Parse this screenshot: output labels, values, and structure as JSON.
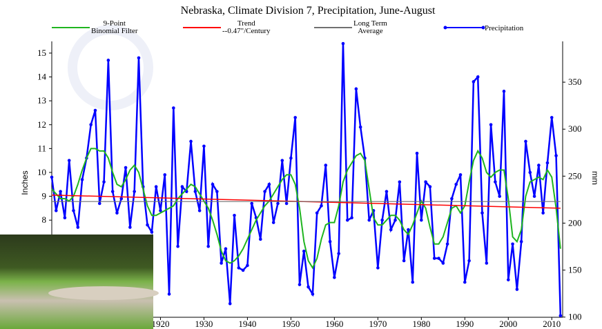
{
  "chart_data": {
    "type": "line",
    "title": "Nebraska, Climate Division 7, Precipitation, June-August",
    "y_label": "Inches",
    "y2_label": "mm",
    "xlim": [
      1895,
      2012.5
    ],
    "xticks": [
      1920,
      1930,
      1940,
      1950,
      1960,
      1970,
      1980,
      1990,
      2000,
      2010
    ],
    "ylim": [
      3.93,
      15.49
    ],
    "yticks": [
      8,
      9,
      10,
      11,
      12,
      13,
      14,
      15
    ],
    "y2lim": [
      99.8,
      393.4
    ],
    "y2ticks": [
      100,
      150,
      200,
      250,
      300,
      350
    ],
    "x": [
      1895,
      1896,
      1897,
      1898,
      1899,
      1900,
      1901,
      1902,
      1903,
      1904,
      1905,
      1906,
      1907,
      1908,
      1909,
      1910,
      1911,
      1912,
      1913,
      1914,
      1915,
      1916,
      1917,
      1918,
      1919,
      1920,
      1921,
      1922,
      1923,
      1924,
      1925,
      1926,
      1927,
      1928,
      1929,
      1930,
      1931,
      1932,
      1933,
      1934,
      1935,
      1936,
      1937,
      1938,
      1939,
      1940,
      1941,
      1942,
      1943,
      1944,
      1945,
      1946,
      1947,
      1948,
      1949,
      1950,
      1951,
      1952,
      1953,
      1954,
      1955,
      1956,
      1957,
      1958,
      1959,
      1960,
      1961,
      1962,
      1963,
      1964,
      1965,
      1966,
      1967,
      1968,
      1969,
      1970,
      1971,
      1972,
      1973,
      1974,
      1975,
      1976,
      1977,
      1978,
      1979,
      1980,
      1981,
      1982,
      1983,
      1984,
      1985,
      1986,
      1987,
      1988,
      1989,
      1990,
      1991,
      1992,
      1993,
      1994,
      1995,
      1996,
      1997,
      1998,
      1999,
      2000,
      2001,
      2002,
      2003,
      2004,
      2005,
      2006,
      2007,
      2008,
      2009,
      2010,
      2011,
      2012
    ],
    "series": [
      {
        "name": "9-Point\nBinomial Filter",
        "color": "#1fb51f",
        "values": [
          9.3,
          9.1,
          8.9,
          8.9,
          8.8,
          9.0,
          9.5,
          10.1,
          10.6,
          11.0,
          11.0,
          10.9,
          10.9,
          10.6,
          10.0,
          9.5,
          9.4,
          9.7,
          10.1,
          10.3,
          10.0,
          9.3,
          8.6,
          8.2,
          8.2,
          8.3,
          8.4,
          8.5,
          8.6,
          8.9,
          9.1,
          9.3,
          9.5,
          9.4,
          9.1,
          8.8,
          8.5,
          8.0,
          7.4,
          6.7,
          6.3,
          6.2,
          6.3,
          6.5,
          6.8,
          7.2,
          7.6,
          8.0,
          8.3,
          8.6,
          8.8,
          9.1,
          9.4,
          9.7,
          9.9,
          9.9,
          9.5,
          8.5,
          7.1,
          6.3,
          6.0,
          6.4,
          7.2,
          7.8,
          7.9,
          7.9,
          8.6,
          9.6,
          10.1,
          10.4,
          10.7,
          10.8,
          10.5,
          9.3,
          8.1,
          7.8,
          7.8,
          8.0,
          8.2,
          8.2,
          8.0,
          7.6,
          7.4,
          7.8,
          8.3,
          8.8,
          8.5,
          7.7,
          7.0,
          7.0,
          7.3,
          7.9,
          8.5,
          8.6,
          8.3,
          8.6,
          9.6,
          10.5,
          10.9,
          10.6,
          10.0,
          9.8,
          10.0,
          10.1,
          10.1,
          8.9,
          7.3,
          7.1,
          7.6,
          9.0,
          9.6,
          9.7,
          9.8,
          9.7,
          10.1,
          9.8,
          8.5,
          6.8
        ]
      },
      {
        "name": "Trend\n--0.47\"/Century",
        "color": "#ff0000",
        "x": [
          1895,
          2012
        ],
        "values": [
          9.05,
          8.5
        ]
      },
      {
        "name": "Long Term\nAverage",
        "color": "#707070",
        "x": [
          1895,
          2012
        ],
        "values": [
          8.78,
          8.78
        ]
      },
      {
        "name": "Precipitation",
        "color": "#0000ff",
        "values": [
          9.8,
          8.4,
          9.2,
          8.1,
          10.5,
          8.4,
          7.7,
          9.7,
          10.6,
          12.0,
          12.6,
          8.7,
          9.6,
          14.7,
          9.2,
          8.3,
          8.9,
          10.2,
          7.7,
          9.2,
          14.8,
          9.4,
          7.8,
          7.5,
          9.4,
          8.4,
          9.9,
          4.9,
          12.7,
          6.9,
          9.4,
          9.2,
          11.3,
          9.2,
          8.4,
          11.1,
          6.9,
          9.5,
          9.2,
          6.2,
          6.8,
          4.5,
          8.2,
          6.0,
          5.9,
          6.1,
          8.7,
          8.1,
          7.2,
          9.2,
          9.5,
          7.9,
          8.7,
          10.5,
          8.7,
          10.6,
          12.3,
          5.3,
          6.7,
          5.2,
          4.9,
          8.3,
          8.6,
          10.3,
          7.1,
          5.6,
          6.6,
          15.4,
          8.0,
          8.1,
          13.5,
          11.9,
          10.6,
          8.0,
          8.4,
          6.0,
          8.0,
          9.2,
          7.6,
          8.0,
          9.6,
          6.3,
          7.6,
          5.4,
          10.8,
          8.0,
          9.6,
          9.4,
          6.4,
          6.4,
          6.2,
          7.0,
          8.9,
          9.5,
          9.9,
          5.4,
          6.3,
          13.8,
          14.0,
          8.3,
          6.2,
          12.0,
          9.6,
          9.0,
          13.4,
          5.5,
          7.0,
          5.1,
          7.1,
          11.3,
          10.0,
          9.0,
          10.3,
          8.3,
          10.4,
          12.3,
          10.7,
          4.0
        ]
      }
    ]
  }
}
